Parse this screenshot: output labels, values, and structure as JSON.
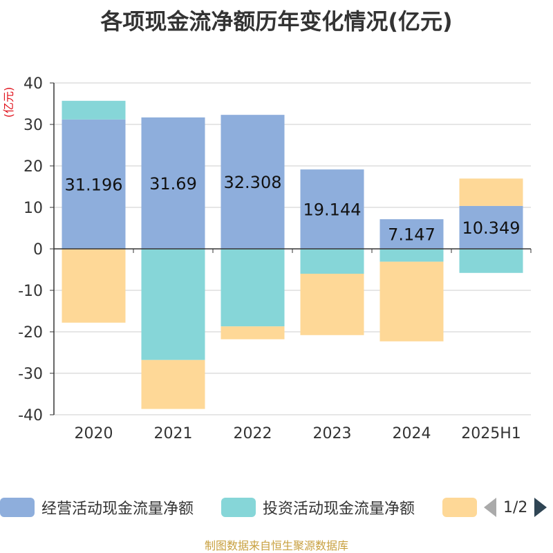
{
  "title": "各项现金流净额历年变化情况(亿元)",
  "footer": "制图数据来自恒生聚源数据库",
  "legend": {
    "items": [
      {
        "label": "经营活动现金流量净额",
        "color": "#8eaedc"
      },
      {
        "label": "投资活动现金流量净额",
        "color": "#86d6d8"
      },
      {
        "label": "",
        "color": "#fed897"
      }
    ],
    "page": "1/2"
  },
  "chart_data": {
    "type": "bar",
    "stacked": true,
    "unit_label": "(亿元)",
    "unit_color": "#e0101a",
    "categories": [
      "2020",
      "2021",
      "2022",
      "2023",
      "2024",
      "2025H1"
    ],
    "ylim": [
      -40,
      40
    ],
    "yticks": [
      40,
      30,
      20,
      10,
      0,
      -10,
      -20,
      -30,
      -40
    ],
    "grid": true,
    "series": [
      {
        "name": "经营活动现金流量净额",
        "color": "#8eaedc",
        "values": [
          31.196,
          31.69,
          32.308,
          19.144,
          7.147,
          10.349
        ],
        "labels": [
          "31.196",
          "31.69",
          "32.308",
          "19.144",
          "7.147",
          "10.349"
        ]
      },
      {
        "name": "投资活动现金流量净额",
        "color": "#86d6d8",
        "values": [
          4.5,
          -26.8,
          -18.7,
          -6.0,
          -3.1,
          -5.8
        ]
      },
      {
        "name": "",
        "color": "#fed897",
        "values": [
          -17.8,
          -11.8,
          -3.1,
          -14.8,
          -19.2,
          6.6
        ]
      }
    ]
  }
}
